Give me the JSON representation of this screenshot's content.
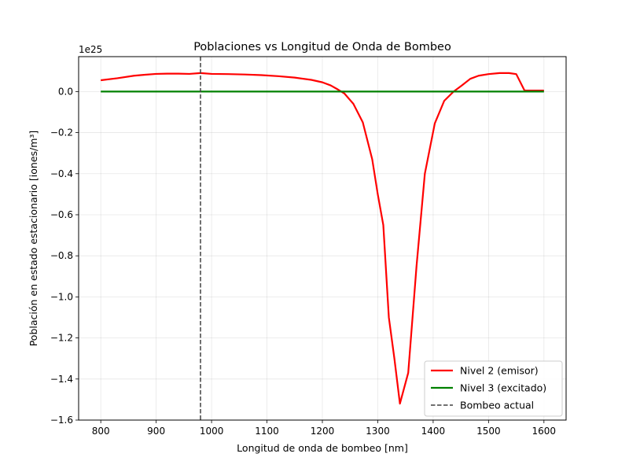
{
  "chart_data": {
    "type": "line",
    "title": "Poblaciones vs Longitud de Onda de Bombeo",
    "xlabel": "Longitud de onda de bombeo [nm]",
    "ylabel": "Población en estado estacionario [iones/m³]",
    "y_offset_label": "1e25",
    "xlim": [
      760,
      1640
    ],
    "ylim": [
      -1.6,
      0.17
    ],
    "y_scale_factor": "1e25",
    "x_ticks": [
      800,
      900,
      1000,
      1100,
      1200,
      1300,
      1400,
      1500,
      1600
    ],
    "x_tick_labels": [
      "800",
      "900",
      "1000",
      "1100",
      "1200",
      "1300",
      "1400",
      "1500",
      "1600"
    ],
    "y_ticks": [
      0.0,
      -0.2,
      -0.4,
      -0.6,
      -0.8,
      -1.0,
      -1.2,
      -1.4,
      -1.6
    ],
    "y_tick_labels": [
      "0.0",
      "−0.2",
      "−0.4",
      "−0.6",
      "−0.8",
      "−1.0",
      "−1.2",
      "−1.4",
      "−1.6"
    ],
    "grid": true,
    "legend_position": "lower-right",
    "series": [
      {
        "name": "Nivel 2 (emisor)",
        "color": "#ff0000",
        "style": "solid",
        "x": [
          800,
          830,
          860,
          880,
          900,
          920,
          940,
          960,
          980,
          1000,
          1030,
          1060,
          1090,
          1120,
          1150,
          1180,
          1200,
          1215,
          1228,
          1240,
          1256,
          1273,
          1290,
          1300,
          1310,
          1320,
          1330,
          1340,
          1355,
          1370,
          1385,
          1403,
          1420,
          1437,
          1452,
          1467,
          1482,
          1500,
          1520,
          1537,
          1550,
          1565,
          1600
        ],
        "y": [
          0.055,
          0.065,
          0.077,
          0.082,
          0.086,
          0.087,
          0.087,
          0.086,
          0.09,
          0.086,
          0.085,
          0.083,
          0.08,
          0.075,
          0.068,
          0.057,
          0.045,
          0.03,
          0.01,
          -0.01,
          -0.06,
          -0.15,
          -0.33,
          -0.5,
          -0.65,
          -1.1,
          -1.3,
          -1.52,
          -1.37,
          -0.85,
          -0.4,
          -0.155,
          -0.045,
          0.0,
          0.03,
          0.062,
          0.077,
          0.085,
          0.09,
          0.09,
          0.085,
          0.005,
          0.005
        ]
      },
      {
        "name": "Nivel 3 (excitado)",
        "color": "#008000",
        "style": "solid",
        "x": [
          800,
          1600
        ],
        "y": [
          0.0,
          0.0
        ]
      },
      {
        "name": "Bombeo actual",
        "color": "#404040",
        "style": "dashed",
        "vertical_line_x": 980
      }
    ]
  }
}
